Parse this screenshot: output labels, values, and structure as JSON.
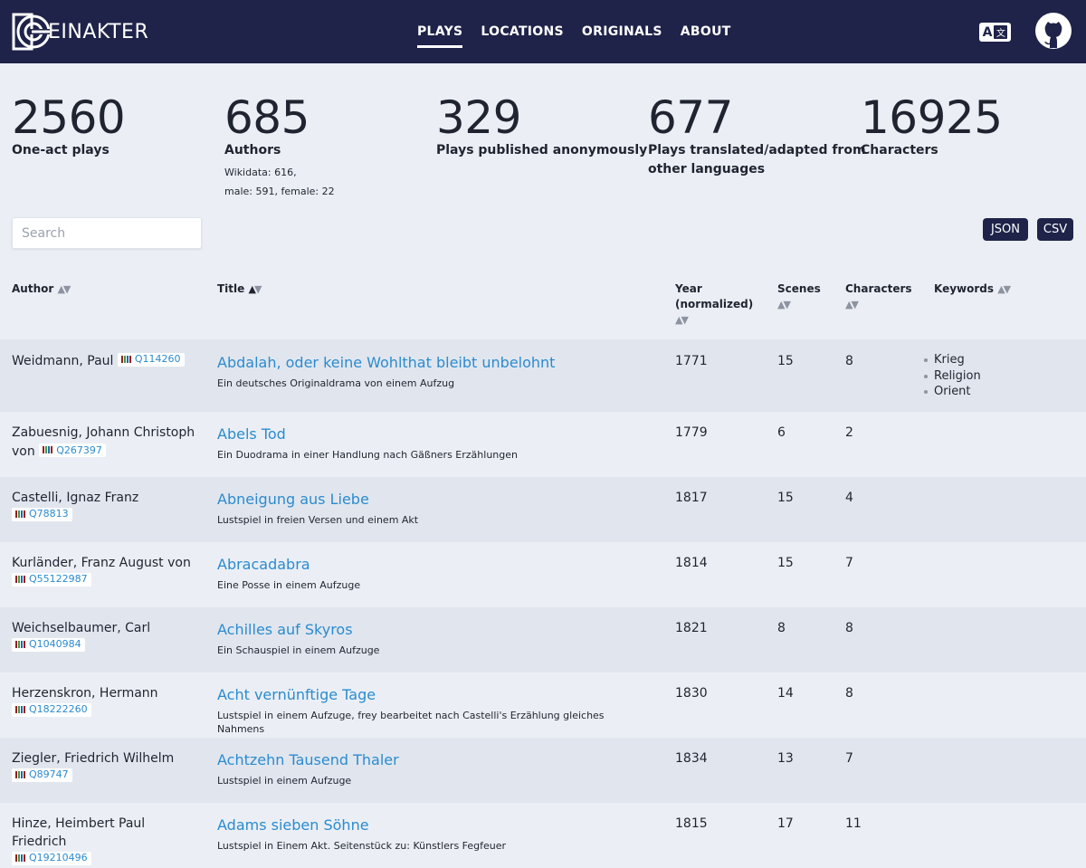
{
  "nav": {
    "logo_text": "EINAKTER",
    "links": [
      "PLAYS",
      "LOCATIONS",
      "ORIGINALS",
      "ABOUT"
    ],
    "active": "PLAYS"
  },
  "stats": [
    {
      "number": "2560",
      "label": "One-act plays"
    },
    {
      "number": "685",
      "label": "Authors",
      "sub1": "Wikidata: 616,",
      "sub2": "male: 591, female: 22"
    },
    {
      "number": "329",
      "label": "Plays published anonymously"
    },
    {
      "number": "677",
      "label_line1": "Plays translated/adapted from",
      "label_line2": "other languages"
    },
    {
      "number": "16925",
      "label": "Characters"
    }
  ],
  "search": {
    "placeholder": "Search",
    "value": ""
  },
  "downloads": [
    "JSON",
    "CSV"
  ],
  "table": {
    "headers": {
      "author": "Author",
      "title": "Title",
      "year_line1": "Year",
      "year_line2": "(normalized)",
      "scenes": "Scenes",
      "characters": "Characters",
      "keywords": "Keywords"
    },
    "rows": [
      {
        "author": "Weidmann, Paul",
        "wikidata": "Q114260",
        "title": "Abdalah, oder keine Wohlthat bleibt unbelohnt",
        "subtitle": "Ein deutsches Originaldrama von einem Aufzug",
        "year": "1771",
        "scenes": "15",
        "characters": "8",
        "keywords": [
          "Krieg",
          "Religion",
          "Orient"
        ]
      },
      {
        "author": "Zabuesnig, Johann Christoph von",
        "author_line1": "Zabuesnig, Johann Christoph",
        "author_line2": "von",
        "wikidata": "Q267397",
        "title": "Abels Tod",
        "subtitle": "Ein Duodrama in einer Handlung nach Gäßners Erzählungen",
        "year": "1779",
        "scenes": "6",
        "characters": "2",
        "keywords": []
      },
      {
        "author": "Castelli, Ignaz Franz",
        "wikidata": "Q78813",
        "title": "Abneigung aus Liebe",
        "subtitle": "Lustspiel in freien Versen und einem Akt",
        "year": "1817",
        "scenes": "15",
        "characters": "4",
        "keywords": []
      },
      {
        "author": "Kurländer, Franz August von",
        "wikidata": "Q55122987",
        "title": "Abracadabra",
        "subtitle": "Eine Posse in einem Aufzuge",
        "year": "1814",
        "scenes": "15",
        "characters": "7",
        "keywords": []
      },
      {
        "author": "Weichselbaumer, Carl",
        "wikidata": "Q1040984",
        "title": "Achilles auf Skyros",
        "subtitle": "Ein Schauspiel in einem Aufzuge",
        "year": "1821",
        "scenes": "8",
        "characters": "8",
        "keywords": []
      },
      {
        "author": "Herzenskron, Hermann",
        "wikidata": "Q18222260",
        "title": "Acht vernünftige Tage",
        "subtitle": "Lustspiel in einem Aufzuge, frey bearbeitet nach Castelli's Erzählung gleiches Nahmens",
        "year": "1830",
        "scenes": "14",
        "characters": "8",
        "keywords": []
      },
      {
        "author": "Ziegler, Friedrich Wilhelm",
        "wikidata": "Q89747",
        "title": "Achtzehn Tausend Thaler",
        "subtitle": "Lustspiel in einem Aufzuge",
        "year": "1834",
        "scenes": "13",
        "characters": "7",
        "keywords": []
      },
      {
        "author": "Hinze, Heimbert Paul Friedrich",
        "wikidata": "Q19210496",
        "title": "Adams sieben Söhne",
        "subtitle": "Lustspiel in Einem Akt. Seitenstück zu: Künstlers Fegfeuer",
        "year": "1815",
        "scenes": "17",
        "characters": "11",
        "keywords": []
      }
    ]
  },
  "colors": {
    "nav_bg": "#1f2349",
    "page_bg": "#ebeff5",
    "row_shade": "#e1e6ee",
    "link": "#2b8bcf"
  }
}
